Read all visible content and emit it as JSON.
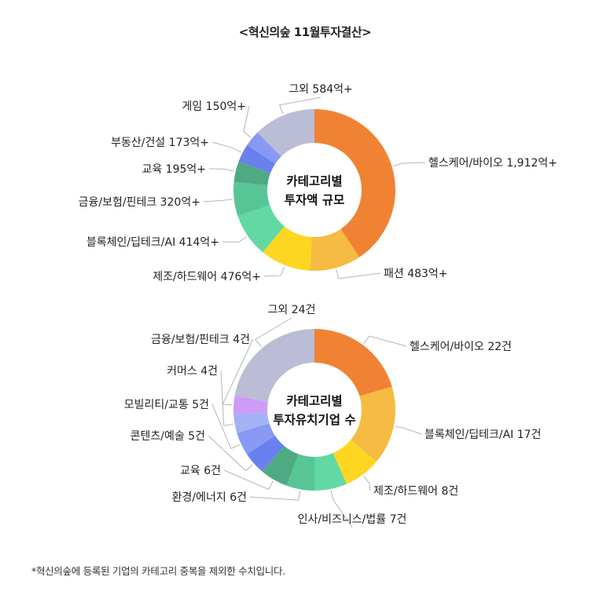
{
  "title": "<혁신의숲 11월투자결산>",
  "footnote": "*혁신의숲에 등록된 기업의 카테고리 중복을 제외한 수치입니다.",
  "chart_data": [
    {
      "type": "pie",
      "center_label": [
        "카테고리별",
        "투자액 규모"
      ],
      "slices": [
        {
          "label": "헬스케어/바이오 1,912억+",
          "value": 1912,
          "color": "#F08233"
        },
        {
          "label": "패션 483억+",
          "value": 483,
          "color": "#F5BB42"
        },
        {
          "label": "제조/하드웨어 476억+",
          "value": 476,
          "color": "#FDD622"
        },
        {
          "label": "블록체인/딥테크/AI 414억+",
          "value": 414,
          "color": "#62D8A5"
        },
        {
          "label": "금융/보험/핀테크 320억+",
          "value": 320,
          "color": "#57C596"
        },
        {
          "label": "교육 195억+",
          "value": 195,
          "color": "#4DAA82"
        },
        {
          "label": "부동산/건설 173억+",
          "value": 173,
          "color": "#6A80EE"
        },
        {
          "label": "게임 150억+",
          "value": 150,
          "color": "#8799F3"
        },
        {
          "label": "그외 584억+",
          "value": 584,
          "color": "#BBBDD6"
        }
      ]
    },
    {
      "type": "pie",
      "center_label": [
        "카테고리별",
        "투자유치기업 수"
      ],
      "slices": [
        {
          "label": "헬스케어/바이오 22건",
          "value": 22,
          "color": "#F08233"
        },
        {
          "label": "블록체인/딥테크/AI 17건",
          "value": 17,
          "color": "#F5BB42"
        },
        {
          "label": "제조/하드웨어 8건",
          "value": 8,
          "color": "#FDD622"
        },
        {
          "label": "인사/비즈니스/법률 7건",
          "value": 7,
          "color": "#62D8A5"
        },
        {
          "label": "환경/에너지 6건",
          "value": 6,
          "color": "#57C596"
        },
        {
          "label": "교육 6건",
          "value": 6,
          "color": "#4DAA82"
        },
        {
          "label": "콘텐츠/예술 5건",
          "value": 5,
          "color": "#6A80EE"
        },
        {
          "label": "모빌리티/교통 5건",
          "value": 5,
          "color": "#8799F3"
        },
        {
          "label": "커머스 4건",
          "value": 4,
          "color": "#A3B2F4"
        },
        {
          "label": "금융/보험/핀테크 4건",
          "value": 4,
          "color": "#CC9CF7"
        },
        {
          "label": "그외 24건",
          "value": 24,
          "color": "#BBBDD6"
        }
      ]
    }
  ]
}
